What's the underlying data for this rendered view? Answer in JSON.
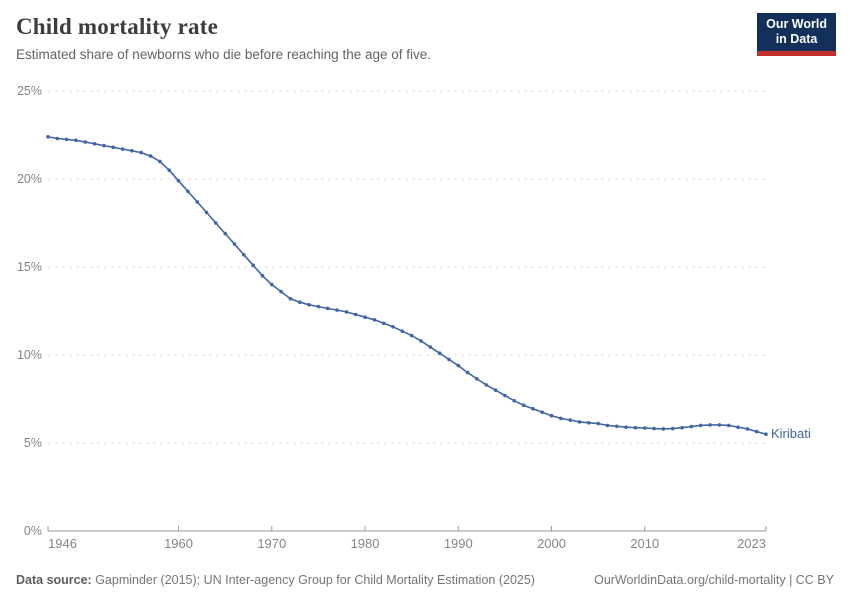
{
  "header": {
    "title": "Child mortality rate",
    "subtitle": "Estimated share of newborns who die before reaching the age of five.",
    "logo_line1": "Our World",
    "logo_line2": "in Data"
  },
  "footer": {
    "source_label": "Data source:",
    "source_text": " Gapminder (2015); UN Inter-agency Group for Child Mortality Estimation (2025)",
    "link_text": "OurWorldinData.org/child-mortality | CC BY"
  },
  "colors": {
    "line": "#4165a5",
    "series_label": "#4165a5",
    "grid": "#dcdcdc",
    "axis": "#9b9b9b",
    "tick_text": "#858585",
    "logo_bg": "#12305a",
    "logo_red": "#c4302e"
  },
  "chart_data": {
    "type": "line",
    "title": "Child mortality rate",
    "series_label": "Kiribati",
    "xlabel": "",
    "ylabel": "",
    "xlim": [
      1946,
      2023
    ],
    "ylim": [
      0,
      25
    ],
    "yticks": [
      0,
      5,
      10,
      15,
      20,
      25
    ],
    "ytick_labels": [
      "0%",
      "5%",
      "10%",
      "15%",
      "20%",
      "25%"
    ],
    "xticks": [
      1946,
      1960,
      1970,
      1980,
      1990,
      2000,
      2010,
      2023
    ],
    "grid": "horizontal-dashed",
    "markers": true,
    "legend_position": "end-of-line-label",
    "years": [
      1946,
      1947,
      1948,
      1949,
      1950,
      1951,
      1952,
      1953,
      1954,
      1955,
      1956,
      1957,
      1958,
      1959,
      1960,
      1961,
      1962,
      1963,
      1964,
      1965,
      1966,
      1967,
      1968,
      1969,
      1970,
      1971,
      1972,
      1973,
      1974,
      1975,
      1976,
      1977,
      1978,
      1979,
      1980,
      1981,
      1982,
      1983,
      1984,
      1985,
      1986,
      1987,
      1988,
      1989,
      1990,
      1991,
      1992,
      1993,
      1994,
      1995,
      1996,
      1997,
      1998,
      1999,
      2000,
      2001,
      2002,
      2003,
      2004,
      2005,
      2006,
      2007,
      2008,
      2009,
      2010,
      2011,
      2012,
      2013,
      2014,
      2015,
      2016,
      2017,
      2018,
      2019,
      2020,
      2021,
      2022,
      2023
    ],
    "values": [
      22.4,
      22.3,
      22.25,
      22.2,
      22.1,
      22.0,
      21.9,
      21.8,
      21.7,
      21.6,
      21.5,
      21.3,
      21.0,
      20.5,
      19.9,
      19.3,
      18.7,
      18.1,
      17.5,
      16.9,
      16.3,
      15.7,
      15.1,
      14.5,
      14.0,
      13.6,
      13.2,
      13.0,
      12.85,
      12.75,
      12.65,
      12.55,
      12.45,
      12.3,
      12.15,
      12.0,
      11.8,
      11.6,
      11.35,
      11.1,
      10.8,
      10.45,
      10.1,
      9.75,
      9.4,
      9.0,
      8.65,
      8.3,
      8.0,
      7.7,
      7.4,
      7.15,
      6.95,
      6.75,
      6.55,
      6.4,
      6.3,
      6.2,
      6.15,
      6.1,
      6.0,
      5.95,
      5.9,
      5.87,
      5.85,
      5.82,
      5.8,
      5.82,
      5.87,
      5.93,
      6.0,
      6.03,
      6.03,
      6.0,
      5.9,
      5.8,
      5.65,
      5.5
    ]
  }
}
